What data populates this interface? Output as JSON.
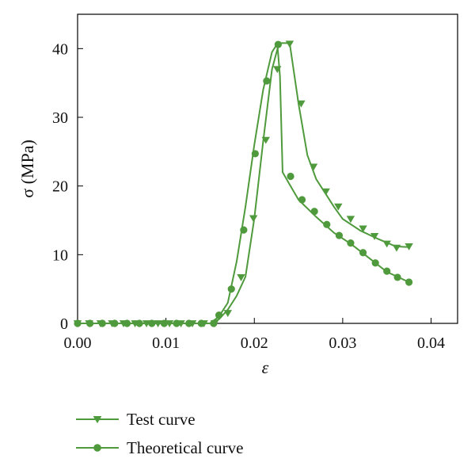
{
  "chart_data": {
    "type": "line",
    "title": "",
    "xlabel": "ε",
    "ylabel": "σ (MPa)",
    "xlim": [
      0.0,
      0.043
    ],
    "ylim": [
      0,
      45
    ],
    "x_ticks": [
      0.0,
      0.01,
      0.02,
      0.03,
      0.04
    ],
    "x_tick_labels": [
      "0.00",
      "0.01",
      "0.02",
      "0.03",
      "0.04"
    ],
    "y_ticks": [
      0,
      10,
      20,
      30,
      40
    ],
    "y_tick_labels": [
      "0",
      "10",
      "20",
      "30",
      "40"
    ],
    "grid": false,
    "legend": "bottom-left, below plot",
    "color": "#4f9a3c",
    "series": [
      {
        "name": "Test curve",
        "marker": "triangle-down",
        "line": [
          [
            0.0,
            0
          ],
          [
            0.015,
            0
          ],
          [
            0.016,
            0.6
          ],
          [
            0.017,
            2.0
          ],
          [
            0.018,
            4.0
          ],
          [
            0.019,
            6.8
          ],
          [
            0.02,
            15.3
          ],
          [
            0.021,
            26.5
          ],
          [
            0.022,
            37.0
          ],
          [
            0.0228,
            40.8
          ],
          [
            0.024,
            40.8
          ],
          [
            0.025,
            32.0
          ],
          [
            0.026,
            24.5
          ],
          [
            0.027,
            21.0
          ],
          [
            0.028,
            19.0
          ],
          [
            0.029,
            17.0
          ],
          [
            0.03,
            15.2
          ],
          [
            0.032,
            13.5
          ],
          [
            0.034,
            12.3
          ],
          [
            0.036,
            11.2
          ],
          [
            0.0375,
            11.1
          ]
        ],
        "markers": [
          [
            0.0,
            0
          ],
          [
            0.0013,
            0
          ],
          [
            0.0026,
            0
          ],
          [
            0.0039,
            0
          ],
          [
            0.0052,
            0
          ],
          [
            0.0065,
            0
          ],
          [
            0.0078,
            0
          ],
          [
            0.0091,
            0
          ],
          [
            0.0104,
            0
          ],
          [
            0.0117,
            0
          ],
          [
            0.013,
            0
          ],
          [
            0.0143,
            0
          ],
          [
            0.0155,
            0
          ],
          [
            0.017,
            1.5
          ],
          [
            0.0185,
            6.7
          ],
          [
            0.0199,
            15.3
          ],
          [
            0.0213,
            26.7
          ],
          [
            0.0226,
            37.0
          ],
          [
            0.024,
            40.7
          ],
          [
            0.0253,
            32.0
          ],
          [
            0.0267,
            22.8
          ],
          [
            0.0281,
            19.2
          ],
          [
            0.0295,
            17.0
          ],
          [
            0.0309,
            15.2
          ],
          [
            0.0323,
            13.8
          ],
          [
            0.0336,
            12.7
          ],
          [
            0.035,
            11.6
          ],
          [
            0.0361,
            11.0
          ],
          [
            0.0375,
            11.2
          ]
        ]
      },
      {
        "name": "Theoretical curve",
        "marker": "circle",
        "line": [
          [
            0.0,
            0
          ],
          [
            0.015,
            0
          ],
          [
            0.016,
            1.0
          ],
          [
            0.017,
            3.0
          ],
          [
            0.018,
            9.0
          ],
          [
            0.019,
            17.0
          ],
          [
            0.02,
            26.0
          ],
          [
            0.021,
            34.0
          ],
          [
            0.022,
            39.5
          ],
          [
            0.0226,
            40.7
          ],
          [
            0.0229,
            36.0
          ],
          [
            0.0232,
            22.0
          ],
          [
            0.024,
            20.2
          ],
          [
            0.025,
            18.0
          ],
          [
            0.027,
            15.5
          ],
          [
            0.029,
            13.2
          ],
          [
            0.031,
            11.5
          ],
          [
            0.033,
            9.5
          ],
          [
            0.035,
            7.5
          ],
          [
            0.0375,
            6.0
          ]
        ],
        "markers": [
          [
            0.0,
            0
          ],
          [
            0.0014,
            0
          ],
          [
            0.0028,
            0
          ],
          [
            0.0042,
            0
          ],
          [
            0.0056,
            0
          ],
          [
            0.007,
            0
          ],
          [
            0.0084,
            0
          ],
          [
            0.0098,
            0
          ],
          [
            0.0112,
            0
          ],
          [
            0.0126,
            0
          ],
          [
            0.014,
            0
          ],
          [
            0.0154,
            0
          ],
          [
            0.016,
            1.2
          ],
          [
            0.0174,
            5.0
          ],
          [
            0.0188,
            13.6
          ],
          [
            0.0201,
            24.7
          ],
          [
            0.0214,
            35.3
          ],
          [
            0.0227,
            40.6
          ],
          [
            0.0241,
            21.4
          ],
          [
            0.0254,
            18.0
          ],
          [
            0.0268,
            16.3
          ],
          [
            0.0282,
            14.4
          ],
          [
            0.0296,
            12.8
          ],
          [
            0.0309,
            11.7
          ],
          [
            0.0323,
            10.3
          ],
          [
            0.0337,
            8.8
          ],
          [
            0.035,
            7.6
          ],
          [
            0.0362,
            6.7
          ],
          [
            0.0375,
            6.0
          ]
        ]
      }
    ]
  }
}
